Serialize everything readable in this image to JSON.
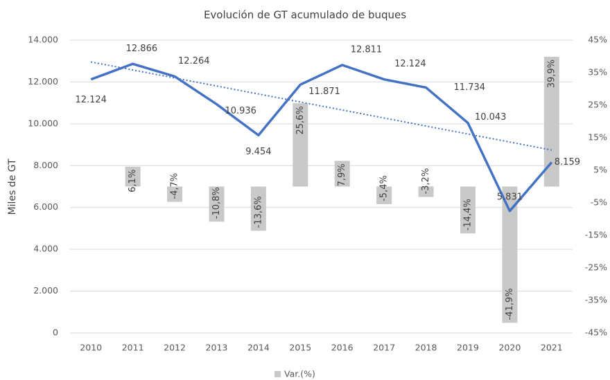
{
  "chart_data": {
    "type": "combo",
    "title": "Evolución de GT acumulado de buques",
    "y_label": "Miles de GT",
    "categories": [
      "2010",
      "2011",
      "2012",
      "2013",
      "2014",
      "2015",
      "2016",
      "2017",
      "2018",
      "2019",
      "2020",
      "2021"
    ],
    "series": [
      {
        "type": "line",
        "color": "#4472c4",
        "values": [
          12124,
          12866,
          12264,
          10936,
          9454,
          11871,
          12811,
          12124,
          11734,
          10043,
          5831,
          8159
        ],
        "value_labels": [
          "12.124",
          "12.866",
          "12.264",
          "10.936",
          "9.454",
          "11.871",
          "12.811",
          "12.124",
          "11.734",
          "10.043",
          "5.831",
          "8.159"
        ],
        "trendline": {
          "type": "linear",
          "color": "#4472c4",
          "style": "dotted"
        }
      },
      {
        "type": "bar",
        "name": "Var.(%)",
        "color": "#c9c9c9",
        "axis": "y2",
        "values": [
          null,
          6.1,
          -4.7,
          -10.8,
          -13.6,
          25.6,
          7.9,
          -5.4,
          -3.2,
          -14.4,
          -41.9,
          39.9
        ],
        "value_labels": [
          null,
          "6,1%",
          "-4,7%",
          "-10,8%",
          "-13,6%",
          "25,6%",
          "7,9%",
          "-5,4%",
          "-3,2%",
          "-14,4%",
          "-41,9%",
          "39,9%"
        ]
      }
    ],
    "ylim": [
      0,
      14000
    ],
    "yticks": [
      {
        "value": 0,
        "label": "0"
      },
      {
        "value": 2000,
        "label": "2.000"
      },
      {
        "value": 4000,
        "label": "4.000"
      },
      {
        "value": 6000,
        "label": "6.000"
      },
      {
        "value": 8000,
        "label": "8.000"
      },
      {
        "value": 10000,
        "label": "10.000"
      },
      {
        "value": 12000,
        "label": "12.000"
      },
      {
        "value": 14000,
        "label": "14.000"
      }
    ],
    "y2lim": [
      -45,
      45
    ],
    "y2ticks": [
      {
        "value": -45,
        "label": "-45%"
      },
      {
        "value": -35,
        "label": "-35%"
      },
      {
        "value": -25,
        "label": "-25%"
      },
      {
        "value": -15,
        "label": "-15%"
      },
      {
        "value": -5,
        "label": "-5%"
      },
      {
        "value": 5,
        "label": "5%"
      },
      {
        "value": 15,
        "label": "15%"
      },
      {
        "value": 25,
        "label": "25%"
      },
      {
        "value": 35,
        "label": "35%"
      },
      {
        "value": 45,
        "label": "45%"
      }
    ],
    "grid": true,
    "legend": "bottom"
  }
}
